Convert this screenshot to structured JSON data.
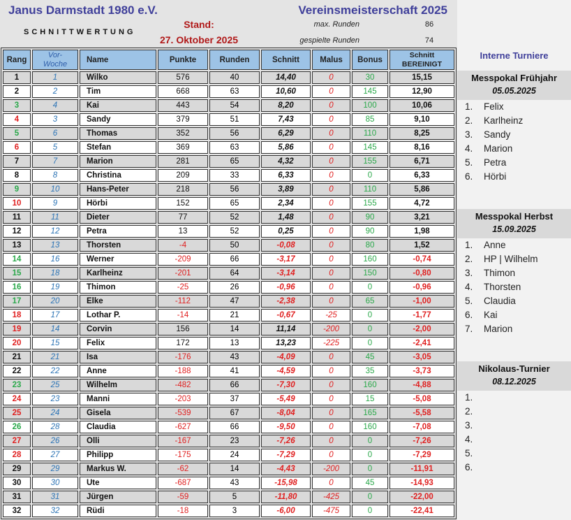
{
  "header": {
    "club": "Janus Darmstadt 1980 e.V.",
    "title": "Vereinsmeisterschaft 2025",
    "subtitle": "SCHNITTWERTUNG",
    "stand_label": "Stand:",
    "stand_date": "27. Oktober 2025",
    "max_runden_label": "max. Runden",
    "max_runden": "86",
    "gespielte_runden_label": "gespielte Runden",
    "gespielte_runden": "74"
  },
  "columns": {
    "rang": "Rang",
    "vorwoche_1": "Vor-",
    "vorwoche_2": "Woche",
    "name": "Name",
    "punkte": "Punkte",
    "runden": "Runden",
    "schnitt": "Schnitt",
    "malus": "Malus",
    "bonus": "Bonus",
    "bereinigt_1": "Schnitt",
    "bereinigt_2": "BEREINIGT"
  },
  "colors": {
    "improved": "#2aa84a",
    "worsened": "#e02020",
    "header_bg": "#9dc3e6",
    "title": "#3f3f9a"
  },
  "rows": [
    [
      "1",
      "1",
      "Wilko",
      "576",
      "40",
      "14,40",
      "0",
      "30",
      "15,15"
    ],
    [
      "2",
      "2",
      "Tim",
      "668",
      "63",
      "10,60",
      "0",
      "145",
      "12,90"
    ],
    [
      "3",
      "4",
      "Kai",
      "443",
      "54",
      "8,20",
      "0",
      "100",
      "10,06"
    ],
    [
      "4",
      "3",
      "Sandy",
      "379",
      "51",
      "7,43",
      "0",
      "85",
      "9,10"
    ],
    [
      "5",
      "6",
      "Thomas",
      "352",
      "56",
      "6,29",
      "0",
      "110",
      "8,25"
    ],
    [
      "6",
      "5",
      "Stefan",
      "369",
      "63",
      "5,86",
      "0",
      "145",
      "8,16"
    ],
    [
      "7",
      "7",
      "Marion",
      "281",
      "65",
      "4,32",
      "0",
      "155",
      "6,71"
    ],
    [
      "8",
      "8",
      "Christina",
      "209",
      "33",
      "6,33",
      "0",
      "0",
      "6,33"
    ],
    [
      "9",
      "10",
      "Hans-Peter",
      "218",
      "56",
      "3,89",
      "0",
      "110",
      "5,86"
    ],
    [
      "10",
      "9",
      "Hörbi",
      "152",
      "65",
      "2,34",
      "0",
      "155",
      "4,72"
    ],
    [
      "11",
      "11",
      "Dieter",
      "77",
      "52",
      "1,48",
      "0",
      "90",
      "3,21"
    ],
    [
      "12",
      "12",
      "Petra",
      "13",
      "52",
      "0,25",
      "0",
      "90",
      "1,98"
    ],
    [
      "13",
      "13",
      "Thorsten",
      "-4",
      "50",
      "-0,08",
      "0",
      "80",
      "1,52"
    ],
    [
      "14",
      "16",
      "Werner",
      "-209",
      "66",
      "-3,17",
      "0",
      "160",
      "-0,74"
    ],
    [
      "15",
      "18",
      "Karlheinz",
      "-201",
      "64",
      "-3,14",
      "0",
      "150",
      "-0,80"
    ],
    [
      "16",
      "19",
      "Thimon",
      "-25",
      "26",
      "-0,96",
      "0",
      "0",
      "-0,96"
    ],
    [
      "17",
      "20",
      "Elke",
      "-112",
      "47",
      "-2,38",
      "0",
      "65",
      "-1,00"
    ],
    [
      "18",
      "17",
      "Lothar P.",
      "-14",
      "21",
      "-0,67",
      "-25",
      "0",
      "-1,77"
    ],
    [
      "19",
      "14",
      "Corvin",
      "156",
      "14",
      "11,14",
      "-200",
      "0",
      "-2,00"
    ],
    [
      "20",
      "15",
      "Felix",
      "172",
      "13",
      "13,23",
      "-225",
      "0",
      "-2,41"
    ],
    [
      "21",
      "21",
      "Isa",
      "-176",
      "43",
      "-4,09",
      "0",
      "45",
      "-3,05"
    ],
    [
      "22",
      "22",
      "Anne",
      "-188",
      "41",
      "-4,59",
      "0",
      "35",
      "-3,73"
    ],
    [
      "23",
      "25",
      "Wilhelm",
      "-482",
      "66",
      "-7,30",
      "0",
      "160",
      "-4,88"
    ],
    [
      "24",
      "23",
      "Manni",
      "-203",
      "37",
      "-5,49",
      "0",
      "15",
      "-5,08"
    ],
    [
      "25",
      "24",
      "Gisela",
      "-539",
      "67",
      "-8,04",
      "0",
      "165",
      "-5,58"
    ],
    [
      "26",
      "28",
      "Claudia",
      "-627",
      "66",
      "-9,50",
      "0",
      "160",
      "-7,08"
    ],
    [
      "27",
      "26",
      "Olli",
      "-167",
      "23",
      "-7,26",
      "0",
      "0",
      "-7,26"
    ],
    [
      "28",
      "27",
      "Philipp",
      "-175",
      "24",
      "-7,29",
      "0",
      "0",
      "-7,29"
    ],
    [
      "29",
      "29",
      "Markus W.",
      "-62",
      "14",
      "-4,43",
      "-200",
      "0",
      "-11,91"
    ],
    [
      "30",
      "30",
      "Ute",
      "-687",
      "43",
      "-15,98",
      "0",
      "45",
      "-14,93"
    ],
    [
      "31",
      "31",
      "Jürgen",
      "-59",
      "5",
      "-11,80",
      "-425",
      "0",
      "-22,00"
    ],
    [
      "32",
      "32",
      "Rüdi",
      "-18",
      "3",
      "-6,00",
      "-475",
      "0",
      "-22,41"
    ]
  ],
  "sidebar": {
    "title": "Interne Turniere",
    "tournaments": [
      {
        "name": "Messpokal Frühjahr",
        "date": "05.05.2025",
        "results": [
          "Felix",
          "Karlheinz",
          "Sandy",
          "Marion",
          "Petra",
          "Hörbi"
        ]
      },
      {
        "name": "Messpokal Herbst",
        "date": "15.09.2025",
        "results": [
          "Anne",
          "HP | Wilhelm",
          "Thimon",
          "Thorsten",
          "Claudia",
          "Kai",
          "Marion"
        ]
      },
      {
        "name": "Nikolaus-Turnier",
        "date": "08.12.2025",
        "results": [
          "",
          "",
          "",
          "",
          "",
          ""
        ]
      }
    ]
  }
}
